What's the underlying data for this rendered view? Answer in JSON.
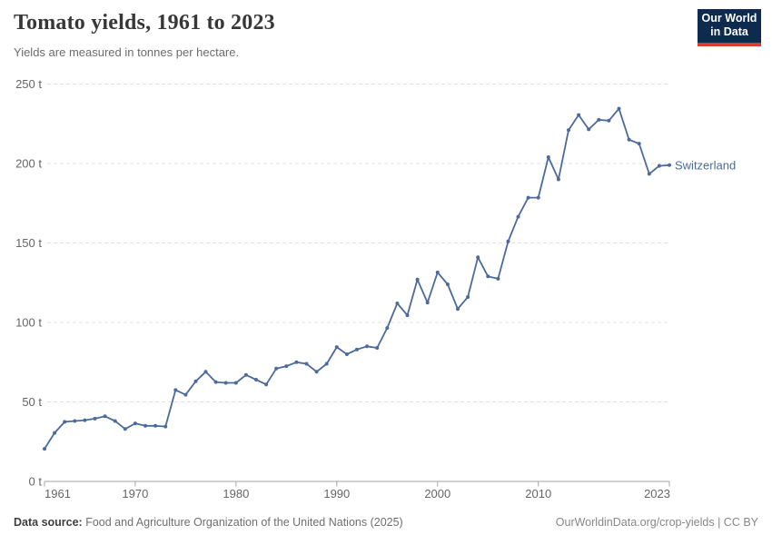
{
  "header": {
    "title": "Tomato yields, 1961 to 2023",
    "subtitle": "Yields are measured in tonnes per hectare.",
    "logo": {
      "line1": "Our World",
      "line2": "in Data",
      "bg_color": "#0e2a4e",
      "accent_color": "#dc3a2f"
    }
  },
  "chart_data": {
    "type": "line",
    "title": "Tomato yields, 1961 to 2023",
    "subtitle": "Yields are measured in tonnes per hectare.",
    "unit": "tonnes per hectare",
    "grid": "horizontal dashed gridlines on",
    "legend_position": "label at end of line",
    "ylim": [
      0,
      250
    ],
    "yticks": [
      0,
      50,
      100,
      150,
      200,
      250
    ],
    "ytick_labels": [
      "0 t",
      "50 t",
      "100 t",
      "150 t",
      "200 t",
      "250 t"
    ],
    "xticks": [
      1961,
      1970,
      1980,
      1990,
      2000,
      2010,
      2023
    ],
    "xtick_labels": [
      "1961",
      "1970",
      "1980",
      "1990",
      "2000",
      "2010",
      "2023"
    ],
    "x": [
      1961,
      1962,
      1963,
      1964,
      1965,
      1966,
      1967,
      1968,
      1969,
      1970,
      1971,
      1972,
      1973,
      1974,
      1975,
      1976,
      1977,
      1978,
      1979,
      1980,
      1981,
      1982,
      1983,
      1984,
      1985,
      1986,
      1987,
      1988,
      1989,
      1990,
      1991,
      1992,
      1993,
      1994,
      1995,
      1996,
      1997,
      1998,
      1999,
      2000,
      2001,
      2002,
      2003,
      2004,
      2005,
      2006,
      2007,
      2008,
      2009,
      2010,
      2011,
      2012,
      2013,
      2014,
      2015,
      2016,
      2017,
      2018,
      2019,
      2020,
      2021,
      2022,
      2023
    ],
    "series": [
      {
        "name": "Switzerland",
        "color": "#4c6a9c",
        "values": [
          20.5,
          30.5,
          37.5,
          38,
          38.5,
          39.5,
          41,
          38,
          33,
          36.5,
          35,
          35,
          34.5,
          57.5,
          54.5,
          63,
          69,
          62.5,
          62,
          62,
          67,
          64,
          61,
          71,
          72.5,
          75,
          74,
          69,
          74,
          84.5,
          80,
          83,
          85,
          84,
          96.5,
          112,
          104.5,
          127,
          112.5,
          131.5,
          124,
          108.5,
          116,
          141,
          129,
          127.5,
          151,
          166.5,
          178.5,
          178.5,
          204,
          190,
          221,
          230.5,
          221.5,
          227.5,
          227,
          234.5,
          215,
          212.5,
          193.5,
          198.5,
          199
        ]
      }
    ]
  },
  "colors": {
    "line": "#4c6a9c",
    "gridline": "#e0e0e0",
    "axis": "#a5a5a5",
    "tick_text": "#666666"
  },
  "footer": {
    "source_label": "Data source:",
    "source_text": "Food and Agriculture Organization of the United Nations (2025)",
    "credit": "OurWorldinData.org/crop-yields | CC BY"
  }
}
